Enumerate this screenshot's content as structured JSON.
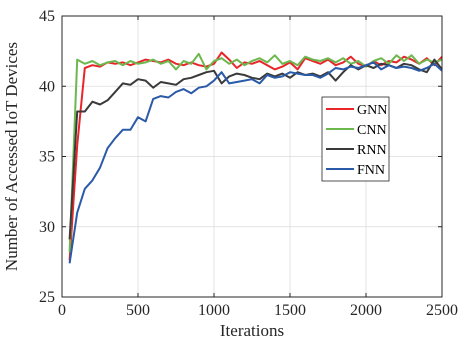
{
  "chart_data": {
    "type": "line",
    "xlabel": "Iterations",
    "ylabel": "Number of Accessed IoT Devices",
    "xlim": [
      0,
      2500
    ],
    "ylim": [
      25,
      45
    ],
    "xticks": [
      0,
      500,
      1000,
      1500,
      2000,
      2500
    ],
    "yticks": [
      25,
      30,
      35,
      40,
      45
    ],
    "grid": true,
    "legend_position": "right",
    "x": [
      50,
      100,
      150,
      200,
      250,
      300,
      350,
      400,
      450,
      500,
      550,
      600,
      650,
      700,
      750,
      800,
      850,
      900,
      950,
      1000,
      1050,
      1100,
      1150,
      1200,
      1250,
      1300,
      1350,
      1400,
      1450,
      1500,
      1550,
      1600,
      1650,
      1700,
      1750,
      1800,
      1850,
      1900,
      1950,
      2000,
      2050,
      2100,
      2150,
      2200,
      2250,
      2300,
      2350,
      2400,
      2450,
      2500
    ],
    "series": [
      {
        "name": "GNN",
        "color": "#e8262a",
        "values": [
          27.6,
          35.8,
          41.3,
          41.5,
          41.4,
          41.7,
          41.6,
          41.7,
          41.5,
          41.7,
          41.9,
          41.8,
          41.7,
          41.9,
          41.6,
          41.5,
          41.7,
          41.5,
          41.4,
          41.6,
          42.4,
          41.9,
          41.3,
          41.7,
          41.6,
          41.8,
          41.5,
          41.2,
          41.4,
          41.7,
          41.2,
          42.0,
          41.8,
          41.6,
          41.9,
          41.5,
          41.7,
          42.1,
          41.6,
          41.4,
          41.8,
          41.5,
          41.8,
          41.7,
          42.1,
          41.9,
          41.6,
          42.0,
          41.5,
          42.1
        ]
      },
      {
        "name": "CNN",
        "color": "#6cb84e",
        "values": [
          28.2,
          41.9,
          41.6,
          41.8,
          41.5,
          41.7,
          41.8,
          41.5,
          41.8,
          41.6,
          41.7,
          41.9,
          41.6,
          41.8,
          41.2,
          41.8,
          41.6,
          42.3,
          41.2,
          41.8,
          42.0,
          41.6,
          41.9,
          41.5,
          41.8,
          42.0,
          41.7,
          42.2,
          41.6,
          41.8,
          41.5,
          42.1,
          41.9,
          41.8,
          42.0,
          41.7,
          42.0,
          41.6,
          41.8,
          41.4,
          41.8,
          42.0,
          41.6,
          42.2,
          41.8,
          42.2,
          41.6,
          41.9,
          41.7,
          41.9
        ]
      },
      {
        "name": "RNN",
        "color": "#3a3a3a",
        "values": [
          29.1,
          38.2,
          38.2,
          38.9,
          38.7,
          39.0,
          39.6,
          40.2,
          40.1,
          40.5,
          40.4,
          39.9,
          40.3,
          40.2,
          40.1,
          40.5,
          40.6,
          40.8,
          41.0,
          41.1,
          40.2,
          40.7,
          40.9,
          40.8,
          40.6,
          40.5,
          40.9,
          40.7,
          40.9,
          40.6,
          41.0,
          40.8,
          40.9,
          40.7,
          41.0,
          40.4,
          41.0,
          41.5,
          41.2,
          41.5,
          41.3,
          41.6,
          41.5,
          41.3,
          41.6,
          41.5,
          41.2,
          41.0,
          41.9,
          41.2
        ]
      },
      {
        "name": "FNN",
        "color": "#2a5aa8",
        "values": [
          27.4,
          31.0,
          32.7,
          33.3,
          34.2,
          35.6,
          36.3,
          36.9,
          36.9,
          37.8,
          37.5,
          39.1,
          39.3,
          39.2,
          39.6,
          39.8,
          39.5,
          39.9,
          40.0,
          40.4,
          41.0,
          40.2,
          40.3,
          40.4,
          40.5,
          40.2,
          40.8,
          40.6,
          40.7,
          41.0,
          40.9,
          40.8,
          40.8,
          40.6,
          40.9,
          41.3,
          41.2,
          41.4,
          41.3,
          41.5,
          41.7,
          41.2,
          41.5,
          41.3,
          41.4,
          41.3,
          41.1,
          41.3,
          41.6,
          41.1
        ]
      }
    ]
  }
}
